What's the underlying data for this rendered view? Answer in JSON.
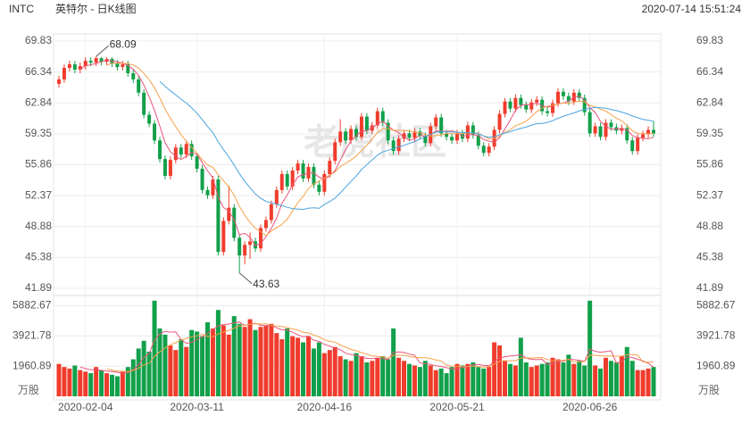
{
  "header": {
    "symbol": "INTC",
    "name": "英特尔 - 日K线图",
    "time": "2020-07-14 15:51:24"
  },
  "watermark": "老虎社区",
  "chart_data": {
    "type": "candlestick",
    "categories": [
      null,
      null,
      null,
      null,
      null,
      "2020-02-04",
      null,
      null,
      null,
      null,
      null,
      null,
      null,
      null,
      null,
      null,
      null,
      null,
      null,
      null,
      null,
      null,
      null,
      null,
      null,
      null,
      "2020-03-11",
      null,
      null,
      null,
      null,
      null,
      null,
      null,
      null,
      null,
      null,
      null,
      null,
      null,
      null,
      null,
      null,
      null,
      null,
      null,
      null,
      null,
      null,
      null,
      "2020-04-16",
      null,
      null,
      null,
      null,
      null,
      null,
      null,
      null,
      null,
      null,
      null,
      null,
      null,
      null,
      null,
      null,
      null,
      null,
      null,
      null,
      null,
      null,
      null,
      null,
      "2020-05-21",
      null,
      null,
      null,
      null,
      null,
      null,
      null,
      null,
      null,
      null,
      null,
      null,
      null,
      null,
      null,
      null,
      null,
      null,
      null,
      null,
      null,
      null,
      null,
      null,
      "2020-06-26",
      null,
      null,
      null,
      null,
      null,
      null,
      null,
      null,
      null,
      null,
      null,
      null
    ],
    "ohlc": [
      [
        65.0,
        65.9,
        64.6,
        65.5
      ],
      [
        65.5,
        67.2,
        65.1,
        66.8
      ],
      [
        66.8,
        67.6,
        66.4,
        67.2
      ],
      [
        67.2,
        67.6,
        66.2,
        66.6
      ],
      [
        66.6,
        67.4,
        66.2,
        67.0
      ],
      [
        67.0,
        68.0,
        66.6,
        67.6
      ],
      [
        67.6,
        68.0,
        67.0,
        67.4
      ],
      [
        67.4,
        68.09,
        67.0,
        67.9
      ],
      [
        67.9,
        68.0,
        67.1,
        67.5
      ],
      [
        67.5,
        68.0,
        67.1,
        67.8
      ],
      [
        67.8,
        68.0,
        66.9,
        67.3
      ],
      [
        67.3,
        67.7,
        66.5,
        66.9
      ],
      [
        66.9,
        67.6,
        66.5,
        67.2
      ],
      [
        67.2,
        67.6,
        65.8,
        66.2
      ],
      [
        66.2,
        66.6,
        65.1,
        65.5
      ],
      [
        65.5,
        65.9,
        63.6,
        64.0
      ],
      [
        64.0,
        64.4,
        61.1,
        61.5
      ],
      [
        61.5,
        61.9,
        60.1,
        60.5
      ],
      [
        60.5,
        60.9,
        58.2,
        58.6
      ],
      [
        58.6,
        59.0,
        56.1,
        56.5
      ],
      [
        56.5,
        56.9,
        54.2,
        54.6
      ],
      [
        54.6,
        56.8,
        54.2,
        56.4
      ],
      [
        56.4,
        58.2,
        56.0,
        57.8
      ],
      [
        57.8,
        58.2,
        56.6,
        57.0
      ],
      [
        57.0,
        58.6,
        56.6,
        58.2
      ],
      [
        58.2,
        58.6,
        56.4,
        56.8
      ],
      [
        56.8,
        57.2,
        55.0,
        55.4
      ],
      [
        55.4,
        55.8,
        52.6,
        53.0
      ],
      [
        53.0,
        53.4,
        52.0,
        52.4
      ],
      [
        52.4,
        54.6,
        52.0,
        54.2
      ],
      [
        54.2,
        54.6,
        45.6,
        46.0
      ],
      [
        46.0,
        49.9,
        45.6,
        49.5
      ],
      [
        49.5,
        53.5,
        49.1,
        51.0
      ],
      [
        51.0,
        51.4,
        47.2,
        47.6
      ],
      [
        47.6,
        48.0,
        43.63,
        45.6
      ],
      [
        45.6,
        47.2,
        44.6,
        46.8
      ],
      [
        46.8,
        48.2,
        45.2,
        47.2
      ],
      [
        47.2,
        47.6,
        46.0,
        46.4
      ],
      [
        46.4,
        49.1,
        46.0,
        48.7
      ],
      [
        48.7,
        50.0,
        48.3,
        49.6
      ],
      [
        49.6,
        51.8,
        49.2,
        51.4
      ],
      [
        51.4,
        53.4,
        51.0,
        53.0
      ],
      [
        53.0,
        55.2,
        52.6,
        54.8
      ],
      [
        54.8,
        55.2,
        53.0,
        53.4
      ],
      [
        53.4,
        55.6,
        53.0,
        55.2
      ],
      [
        55.2,
        56.4,
        54.8,
        56.0
      ],
      [
        56.0,
        56.4,
        53.9,
        54.3
      ],
      [
        54.3,
        56.0,
        53.9,
        55.6
      ],
      [
        55.6,
        56.0,
        53.2,
        53.6
      ],
      [
        53.6,
        54.0,
        52.4,
        52.8
      ],
      [
        52.8,
        55.2,
        52.4,
        54.8
      ],
      [
        54.8,
        56.7,
        54.4,
        56.3
      ],
      [
        56.3,
        58.8,
        55.9,
        58.4
      ],
      [
        58.4,
        61.0,
        58.0,
        59.6
      ],
      [
        59.6,
        60.0,
        58.2,
        58.6
      ],
      [
        58.6,
        60.3,
        58.2,
        59.9
      ],
      [
        59.9,
        60.3,
        58.6,
        59.0
      ],
      [
        59.0,
        61.7,
        58.6,
        61.3
      ],
      [
        61.3,
        61.7,
        59.3,
        59.7
      ],
      [
        59.7,
        60.7,
        59.3,
        60.3
      ],
      [
        60.3,
        62.3,
        59.9,
        61.9
      ],
      [
        61.9,
        62.3,
        60.2,
        60.6
      ],
      [
        60.6,
        61.0,
        58.2,
        58.6
      ],
      [
        58.6,
        59.0,
        57.0,
        57.4
      ],
      [
        57.4,
        59.2,
        57.0,
        58.8
      ],
      [
        58.8,
        59.8,
        58.4,
        59.4
      ],
      [
        59.4,
        59.8,
        58.5,
        58.9
      ],
      [
        58.9,
        60.0,
        58.5,
        59.6
      ],
      [
        59.6,
        60.0,
        58.7,
        59.1
      ],
      [
        59.1,
        59.5,
        57.9,
        58.3
      ],
      [
        58.3,
        60.6,
        57.9,
        60.2
      ],
      [
        60.2,
        61.6,
        59.8,
        61.2
      ],
      [
        61.2,
        61.6,
        59.0,
        59.4
      ],
      [
        59.4,
        59.8,
        58.6,
        59.0
      ],
      [
        59.0,
        59.4,
        58.2,
        58.6
      ],
      [
        58.6,
        59.8,
        58.2,
        59.4
      ],
      [
        59.4,
        59.8,
        58.4,
        58.8
      ],
      [
        58.8,
        60.7,
        58.4,
        60.3
      ],
      [
        60.3,
        60.7,
        58.8,
        59.2
      ],
      [
        59.2,
        59.6,
        57.6,
        58.0
      ],
      [
        58.0,
        58.4,
        56.8,
        57.2
      ],
      [
        57.2,
        58.3,
        56.8,
        57.9
      ],
      [
        57.9,
        60.2,
        57.5,
        59.8
      ],
      [
        59.8,
        62.0,
        59.4,
        61.6
      ],
      [
        61.6,
        63.4,
        61.2,
        63.0
      ],
      [
        63.0,
        63.4,
        61.8,
        62.2
      ],
      [
        62.2,
        63.8,
        61.8,
        63.4
      ],
      [
        63.4,
        63.8,
        62.2,
        62.6
      ],
      [
        62.6,
        63.0,
        61.7,
        62.1
      ],
      [
        62.1,
        63.3,
        61.7,
        62.9
      ],
      [
        62.9,
        63.6,
        62.5,
        63.2
      ],
      [
        63.2,
        63.6,
        61.5,
        61.9
      ],
      [
        61.9,
        62.3,
        61.3,
        61.7
      ],
      [
        61.7,
        63.2,
        61.3,
        62.8
      ],
      [
        62.8,
        64.5,
        62.4,
        64.1
      ],
      [
        64.1,
        64.5,
        63.2,
        63.6
      ],
      [
        63.6,
        64.0,
        62.6,
        63.0
      ],
      [
        63.0,
        64.4,
        62.6,
        64.0
      ],
      [
        64.0,
        64.4,
        63.0,
        63.4
      ],
      [
        63.4,
        63.8,
        61.4,
        61.8
      ],
      [
        61.8,
        62.2,
        59.0,
        59.4
      ],
      [
        59.4,
        60.6,
        59.0,
        60.2
      ],
      [
        60.2,
        60.6,
        58.6,
        59.0
      ],
      [
        59.0,
        61.0,
        58.6,
        60.6
      ],
      [
        60.6,
        61.0,
        59.7,
        60.1
      ],
      [
        60.1,
        60.5,
        59.3,
        59.7
      ],
      [
        59.7,
        60.4,
        59.3,
        60.0
      ],
      [
        60.0,
        60.4,
        58.2,
        58.6
      ],
      [
        58.6,
        59.0,
        57.0,
        57.4
      ],
      [
        57.4,
        59.3,
        57.0,
        58.9
      ],
      [
        58.9,
        59.7,
        58.5,
        59.3
      ],
      [
        59.3,
        60.2,
        58.9,
        59.8
      ],
      [
        59.8,
        60.8,
        59.0,
        59.4
      ]
    ],
    "volume": [
      2100,
      1900,
      1800,
      2000,
      1700,
      1600,
      1500,
      1900,
      1700,
      1500,
      1400,
      1300,
      1600,
      1900,
      2400,
      3100,
      3600,
      2900,
      6200,
      4400,
      4000,
      3300,
      3000,
      3700,
      3200,
      4300,
      4200,
      3900,
      4800,
      4400,
      5600,
      4600,
      4000,
      5200,
      4700,
      4500,
      5000,
      4300,
      4500,
      4600,
      4700,
      4100,
      3700,
      4400,
      3900,
      3800,
      3500,
      3900,
      3100,
      3500,
      2800,
      3000,
      3200,
      2600,
      2400,
      2300,
      2800,
      2600,
      2200,
      2300,
      2500,
      2600,
      2400,
      4400,
      2500,
      2300,
      2100,
      2000,
      1900,
      2300,
      2000,
      1700,
      1800,
      1500,
      1900,
      2100,
      2000,
      2100,
      2200,
      1900,
      1800,
      1900,
      3500,
      3300,
      2300,
      2100,
      2000,
      3800,
      2200,
      1900,
      2000,
      2100,
      2200,
      2500,
      2400,
      2200,
      2700,
      2100,
      2300,
      2000,
      6200,
      2000,
      1800,
      2500,
      2300,
      2200,
      2600,
      3200,
      2300,
      1700,
      1700,
      1800,
      1900
    ],
    "ylim": [
      41.89,
      69.83
    ],
    "yticks": [
      41.89,
      45.38,
      48.88,
      52.37,
      55.86,
      59.35,
      62.84,
      66.34,
      69.83
    ],
    "y2lim": [
      0,
      6250
    ],
    "y2ticks": [
      1960.89,
      3921.78,
      5882.67
    ],
    "volume_unit": "万股",
    "up_color": "#f03c2c",
    "down_color": "#12a04a",
    "ma_colors": [
      "#e8557a",
      "#f5a04a",
      "#4aa3df"
    ],
    "grid": true
  }
}
